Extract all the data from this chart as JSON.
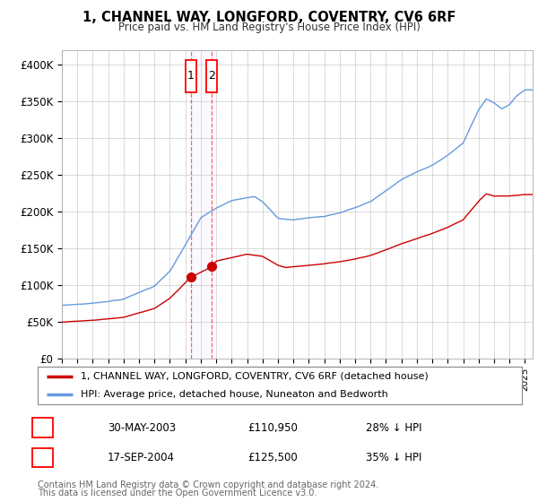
{
  "title": "1, CHANNEL WAY, LONGFORD, COVENTRY, CV6 6RF",
  "subtitle": "Price paid vs. HM Land Registry's House Price Index (HPI)",
  "legend_line1": "1, CHANNEL WAY, LONGFORD, COVENTRY, CV6 6RF (detached house)",
  "legend_line2": "HPI: Average price, detached house, Nuneaton and Bedworth",
  "footer1": "Contains HM Land Registry data © Crown copyright and database right 2024.",
  "footer2": "This data is licensed under the Open Government Licence v3.0.",
  "sale1_date": "30-MAY-2003",
  "sale1_price": 110950,
  "sale1_label": "28% ↓ HPI",
  "sale1_x": 2003.37,
  "sale2_date": "17-SEP-2004",
  "sale2_price": 125500,
  "sale2_label": "35% ↓ HPI",
  "sale2_x": 2004.71,
  "hpi_color": "#6699dd",
  "price_color": "#cc0000",
  "sale_marker_color": "#cc0000",
  "background_color": "#ffffff",
  "grid_color": "#cccccc",
  "ylim": [
    0,
    420000
  ],
  "yticks": [
    0,
    50000,
    100000,
    150000,
    200000,
    250000,
    300000,
    350000,
    400000
  ],
  "ytick_labels": [
    "£0",
    "£50K",
    "£100K",
    "£150K",
    "£200K",
    "£250K",
    "£300K",
    "£350K",
    "£400K"
  ],
  "xlim_start": 1995,
  "xlim_end": 2025.5
}
